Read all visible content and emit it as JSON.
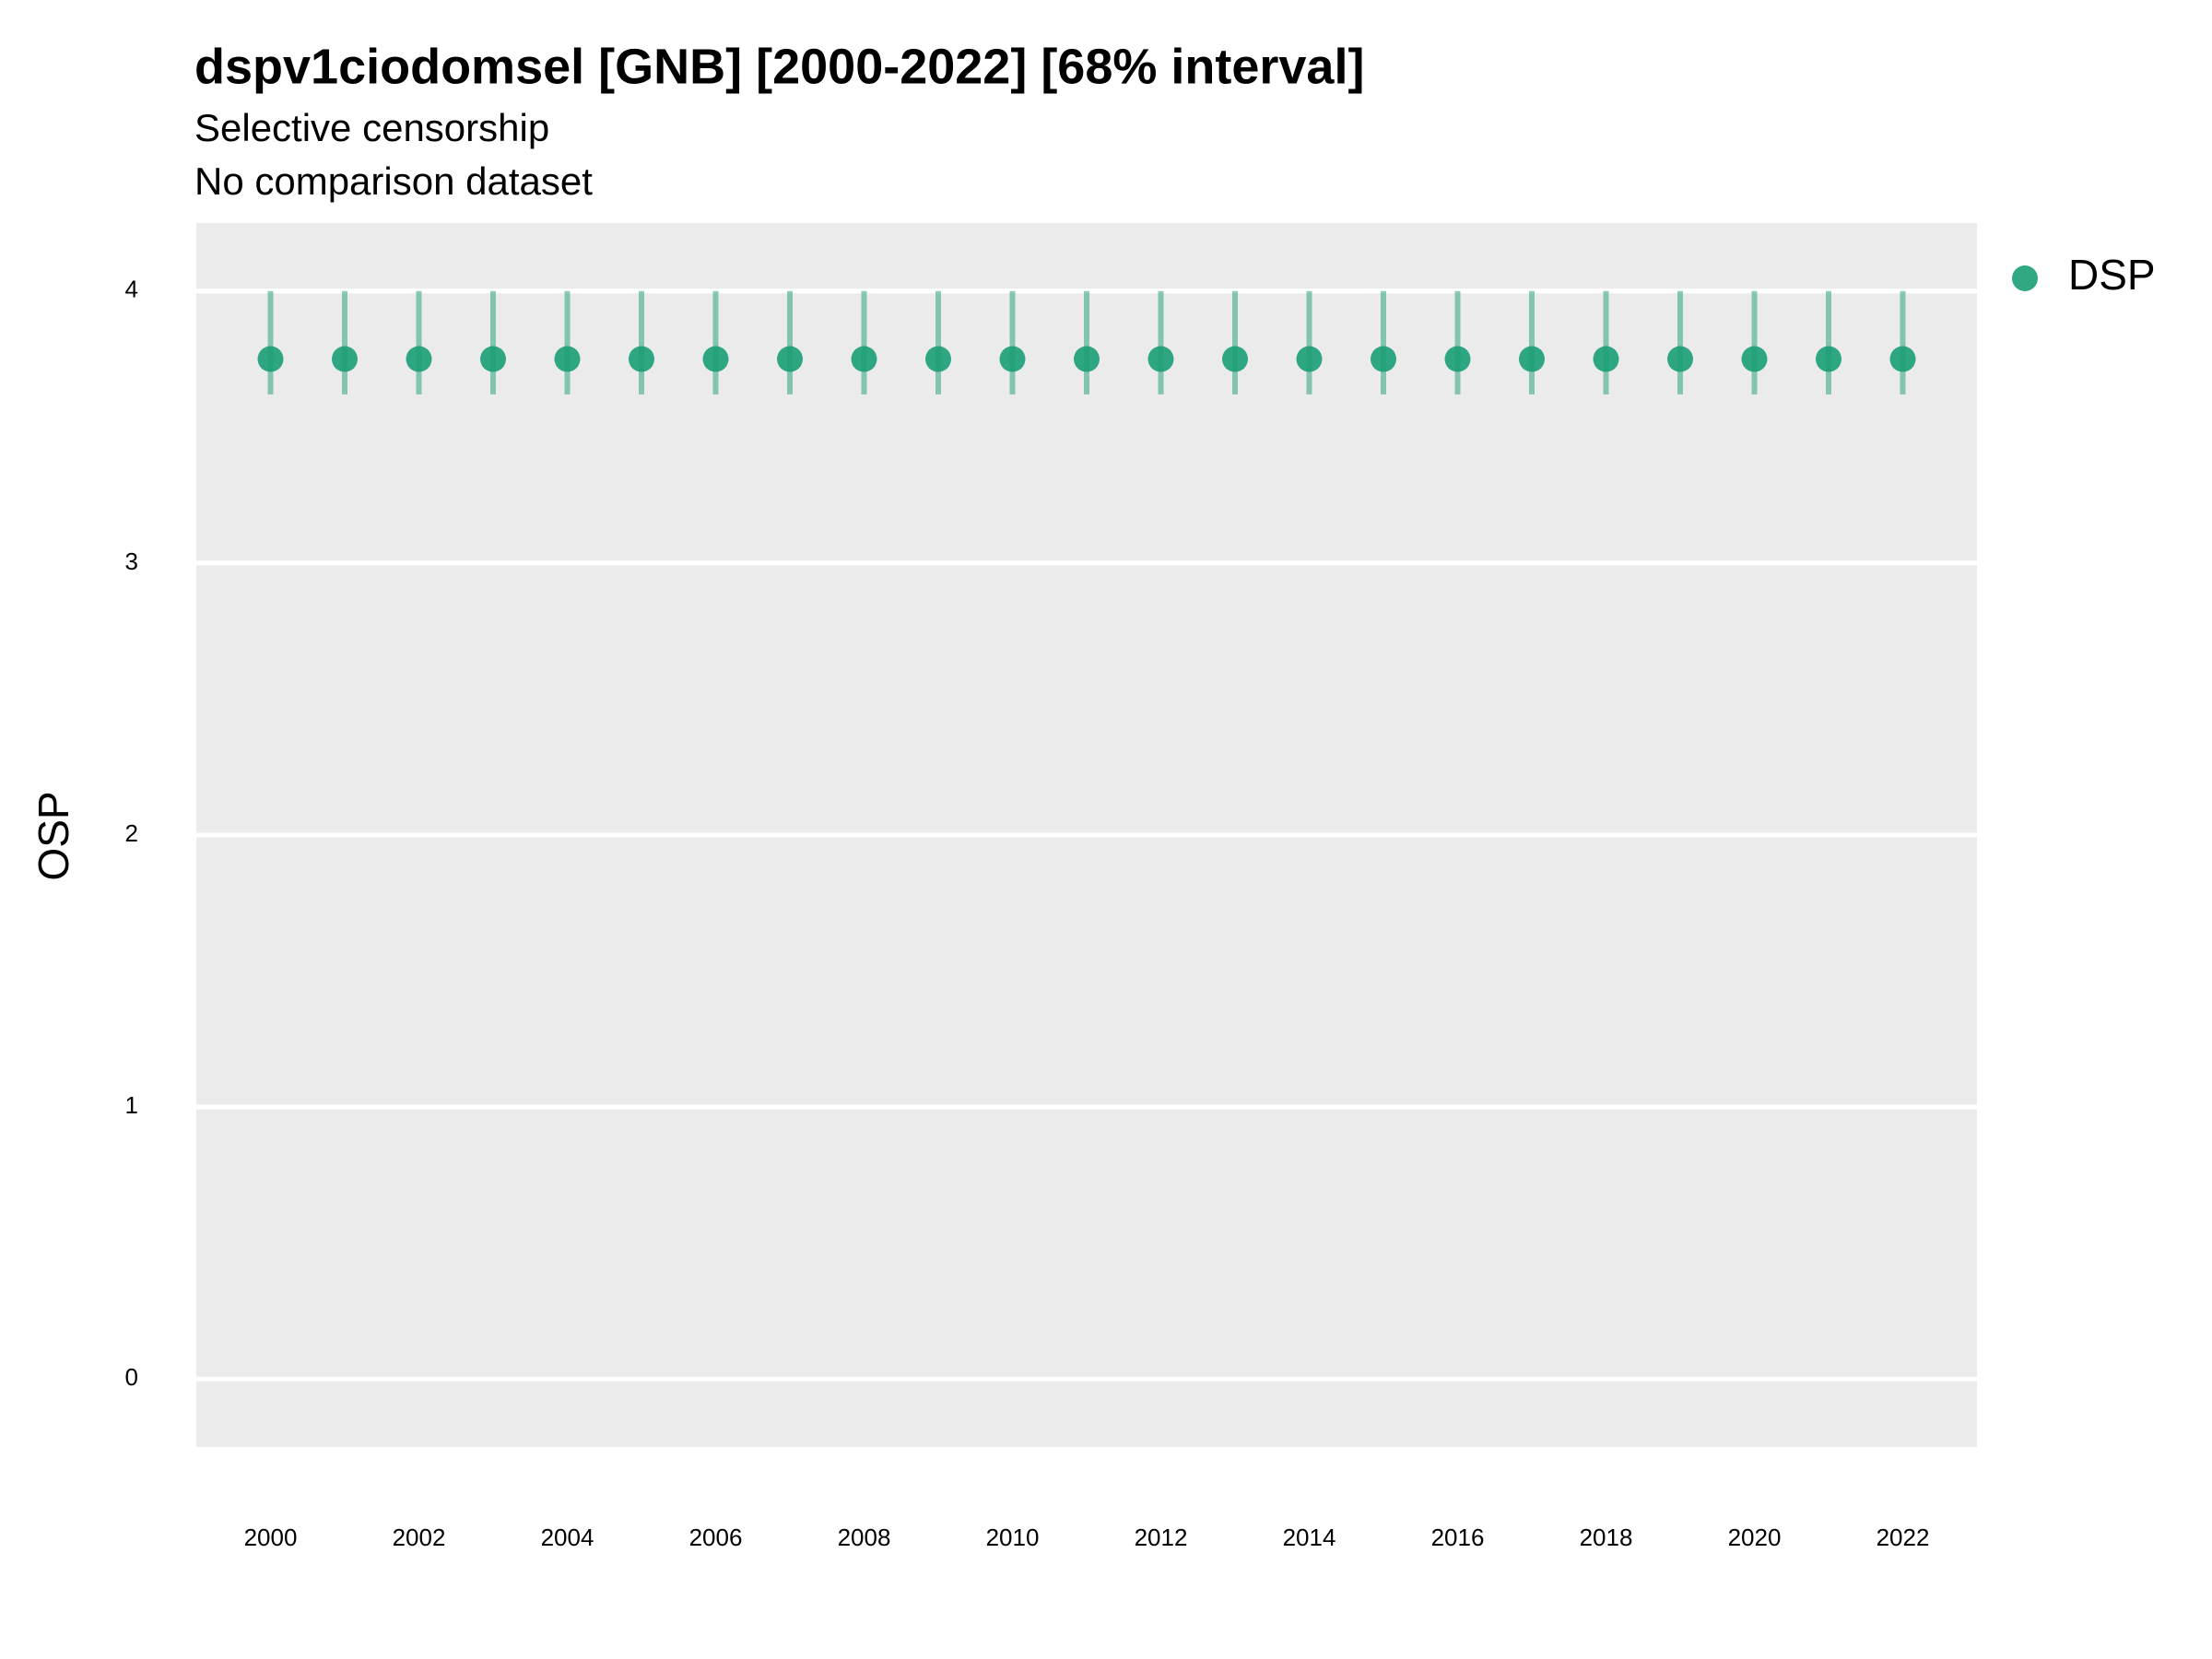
{
  "chart_data": {
    "type": "errorbar",
    "title": "dspv1ciodomsel [GNB] [2000-2022] [68% interval]",
    "subtitle": [
      "Selective censorship",
      "No comparison dataset"
    ],
    "y_label": "OSP",
    "x": [
      2000,
      2001,
      2002,
      2003,
      2004,
      2005,
      2006,
      2007,
      2008,
      2009,
      2010,
      2011,
      2012,
      2013,
      2014,
      2015,
      2016,
      2017,
      2018,
      2019,
      2020,
      2021,
      2022
    ],
    "series": [
      {
        "name": "DSP",
        "color": "#1b9e77",
        "values": [
          3.75,
          3.75,
          3.75,
          3.75,
          3.75,
          3.75,
          3.75,
          3.75,
          3.75,
          3.75,
          3.75,
          3.75,
          3.75,
          3.75,
          3.75,
          3.75,
          3.75,
          3.75,
          3.75,
          3.75,
          3.75,
          3.75,
          3.75
        ],
        "lower": [
          3.62,
          3.62,
          3.62,
          3.62,
          3.62,
          3.62,
          3.62,
          3.62,
          3.62,
          3.62,
          3.62,
          3.62,
          3.62,
          3.62,
          3.62,
          3.62,
          3.62,
          3.62,
          3.62,
          3.62,
          3.62,
          3.62,
          3.62
        ],
        "upper": [
          4.0,
          4.0,
          4.0,
          4.0,
          4.0,
          4.0,
          4.0,
          4.0,
          4.0,
          4.0,
          4.0,
          4.0,
          4.0,
          4.0,
          4.0,
          4.0,
          4.0,
          4.0,
          4.0,
          4.0,
          4.0,
          4.0,
          4.0
        ]
      }
    ],
    "xlim": [
      1999,
      2023
    ],
    "xticks": [
      2000,
      2002,
      2004,
      2006,
      2008,
      2010,
      2012,
      2014,
      2016,
      2018,
      2020,
      2022
    ],
    "ylim": [
      -0.25,
      4.25
    ],
    "yticks": [
      0,
      1,
      2,
      3,
      4
    ],
    "grid": true,
    "legend": "right"
  }
}
